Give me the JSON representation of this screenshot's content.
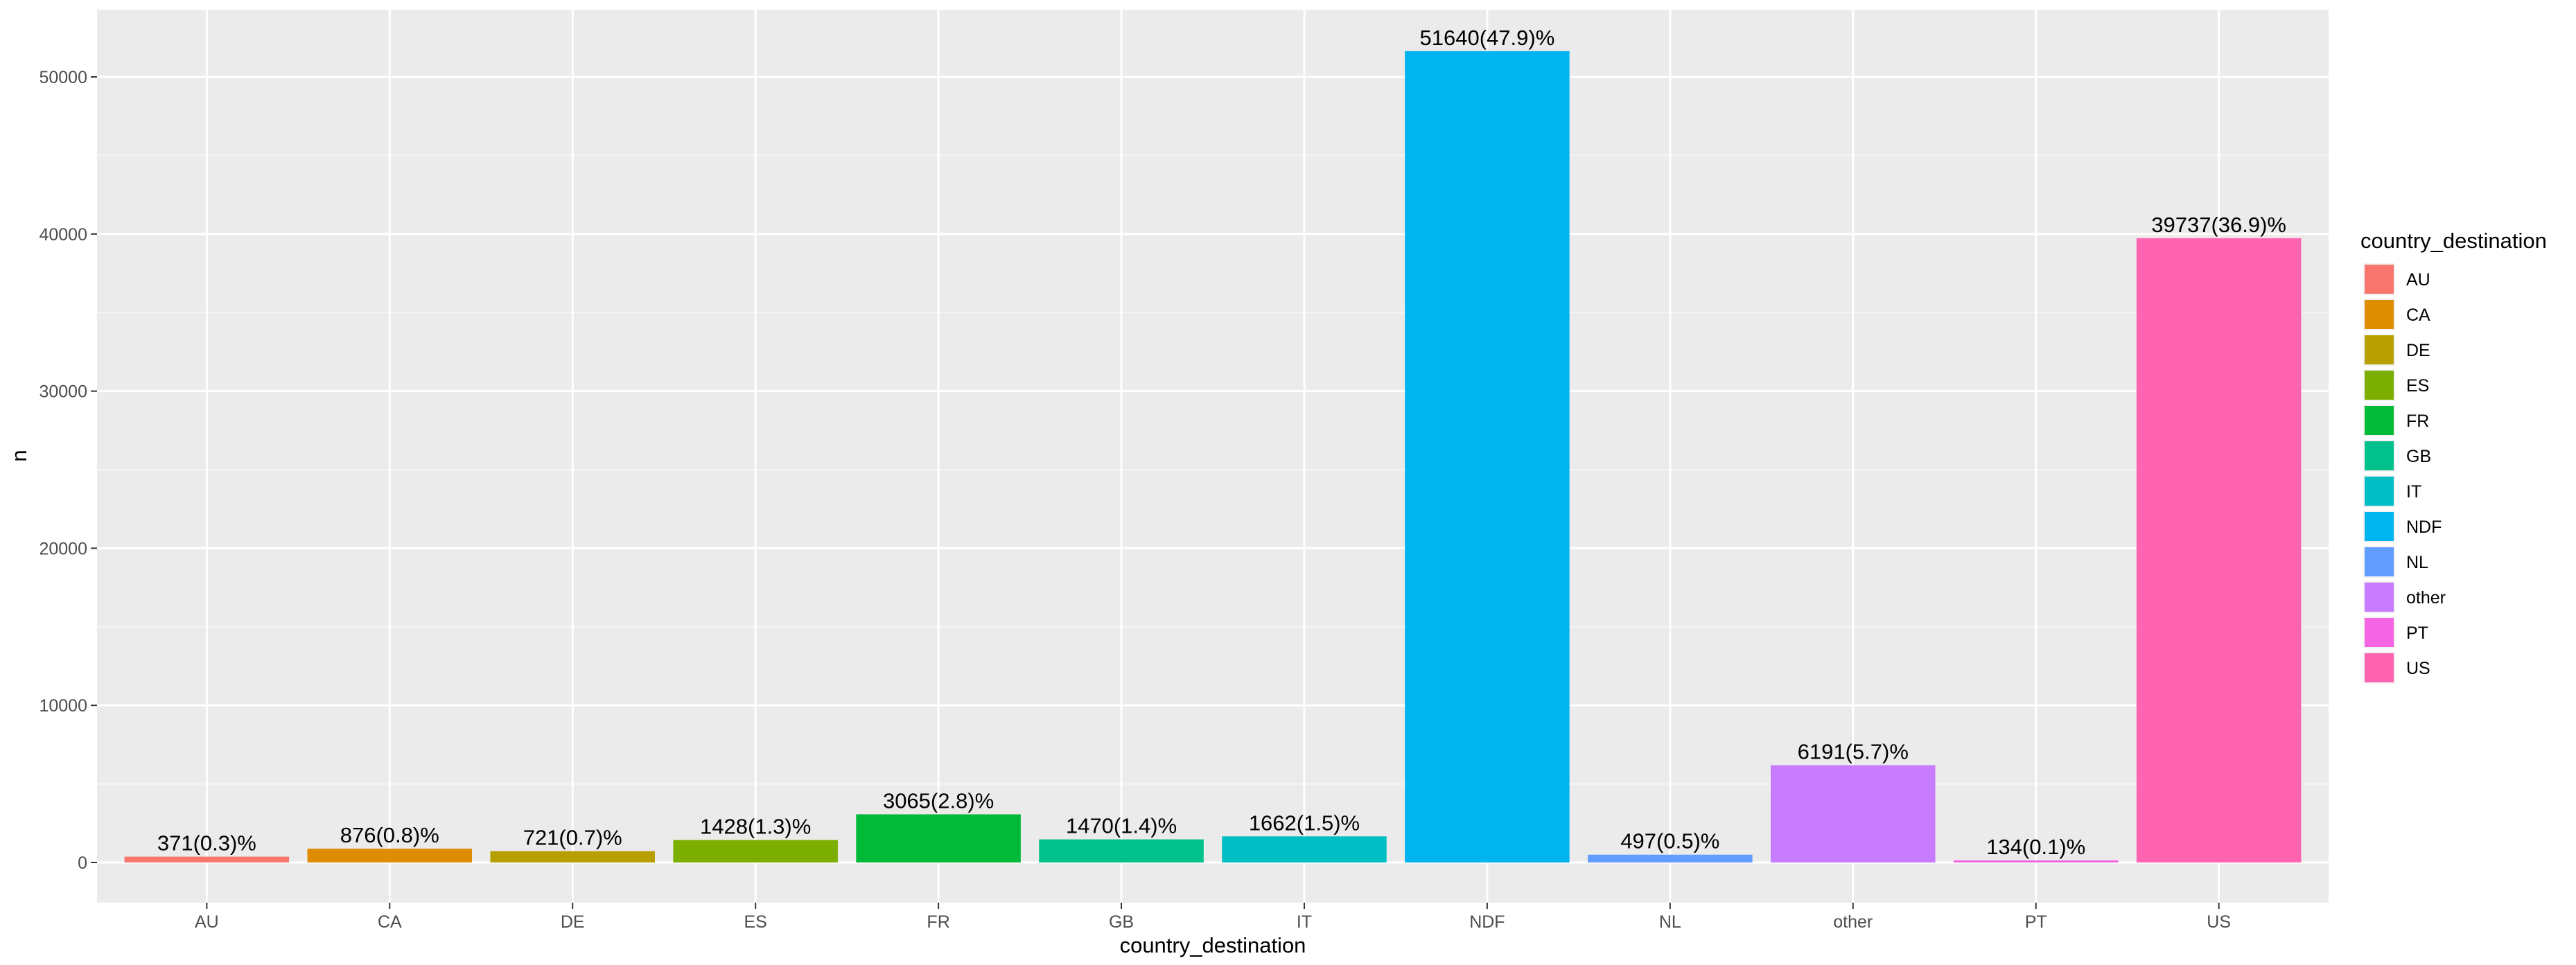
{
  "chart_data": {
    "type": "bar",
    "xlabel": "country_destination",
    "ylabel": "n",
    "ylim": [
      0,
      54000
    ],
    "y_ticks": [
      0,
      10000,
      20000,
      30000,
      40000,
      50000
    ],
    "y_tick_labels": [
      "0",
      "10000",
      "20000",
      "30000",
      "40000",
      "50000"
    ],
    "grid": true,
    "legend_title": "country_destination",
    "legend_position": "right",
    "categories": [
      "AU",
      "CA",
      "DE",
      "ES",
      "FR",
      "GB",
      "IT",
      "NDF",
      "NL",
      "other",
      "PT",
      "US"
    ],
    "values": [
      371,
      876,
      721,
      1428,
      3065,
      1470,
      1662,
      51640,
      497,
      6191,
      134,
      39737
    ],
    "data_labels": [
      "371(0.3)%",
      "876(0.8)%",
      "721(0.7)%",
      "1428(1.3)%",
      "3065(2.8)%",
      "1470(1.4)%",
      "1662(1.5)%",
      "51640(47.9)%",
      "497(0.5)%",
      "6191(5.7)%",
      "134(0.1)%",
      "39737(36.9)%"
    ],
    "colors": [
      "#F8766D",
      "#DE8C00",
      "#B79F00",
      "#7CAE00",
      "#00BA38",
      "#00C08B",
      "#00BFC4",
      "#00B4F0",
      "#619CFF",
      "#C77CFF",
      "#F564E3",
      "#FF64B0"
    ]
  }
}
